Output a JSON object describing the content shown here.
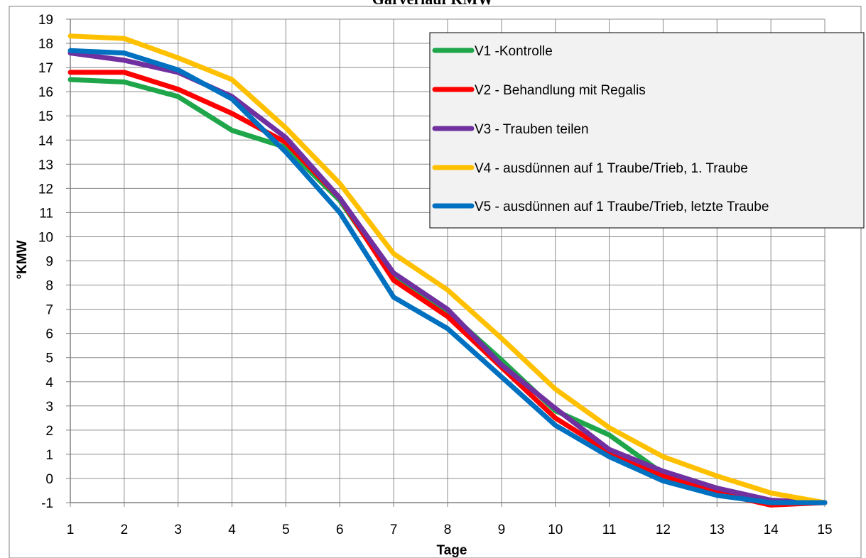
{
  "chart_data": {
    "type": "line",
    "title": "Gärverlauf KMW",
    "xlabel": "Tage",
    "ylabel": "°KMW",
    "x": [
      1,
      2,
      3,
      4,
      5,
      6,
      7,
      8,
      9,
      10,
      11,
      12,
      13,
      14,
      15
    ],
    "xlim": [
      1,
      15
    ],
    "ylim": [
      -1,
      19
    ],
    "x_ticks": [
      1,
      2,
      3,
      4,
      5,
      6,
      7,
      8,
      9,
      10,
      11,
      12,
      13,
      14,
      15
    ],
    "y_ticks": [
      -1,
      0,
      1,
      2,
      3,
      4,
      5,
      6,
      7,
      8,
      9,
      10,
      11,
      12,
      13,
      14,
      15,
      16,
      17,
      18,
      19
    ],
    "grid": true,
    "legend_position": "top-right",
    "series": [
      {
        "name": "V1 -Kontrolle",
        "color": "#1fa64a",
        "values": [
          16.5,
          16.4,
          15.8,
          14.4,
          13.7,
          11.5,
          8.3,
          6.9,
          4.9,
          2.8,
          1.8,
          0.2,
          -0.5,
          -1.0,
          -1.0
        ]
      },
      {
        "name": "V2 - Behandlung mit Regalis",
        "color": "#ff0000",
        "values": [
          16.8,
          16.8,
          16.1,
          15.1,
          13.9,
          11.6,
          8.2,
          6.7,
          4.6,
          2.5,
          1.1,
          0.1,
          -0.6,
          -1.1,
          -1.0
        ]
      },
      {
        "name": "V3 - Trauben teilen",
        "color": "#7030a0",
        "values": [
          17.6,
          17.3,
          16.8,
          15.8,
          14.1,
          11.6,
          8.5,
          7.0,
          4.7,
          2.9,
          1.2,
          0.3,
          -0.4,
          -0.9,
          -1.0
        ]
      },
      {
        "name": "V4 - ausdünnen auf 1 Traube/Trieb, 1. Traube",
        "color": "#ffc000",
        "values": [
          18.3,
          18.2,
          17.4,
          16.5,
          14.5,
          12.2,
          9.3,
          7.8,
          5.8,
          3.7,
          2.1,
          0.9,
          0.1,
          -0.6,
          -1.0
        ]
      },
      {
        "name": "V5 -  ausdünnen auf 1 Traube/Trieb, letzte Traube",
        "color": "#0070c0",
        "values": [
          17.7,
          17.6,
          16.9,
          15.7,
          13.5,
          11.0,
          7.5,
          6.2,
          4.2,
          2.2,
          0.9,
          -0.1,
          -0.7,
          -1.0,
          -1.0
        ]
      }
    ]
  }
}
